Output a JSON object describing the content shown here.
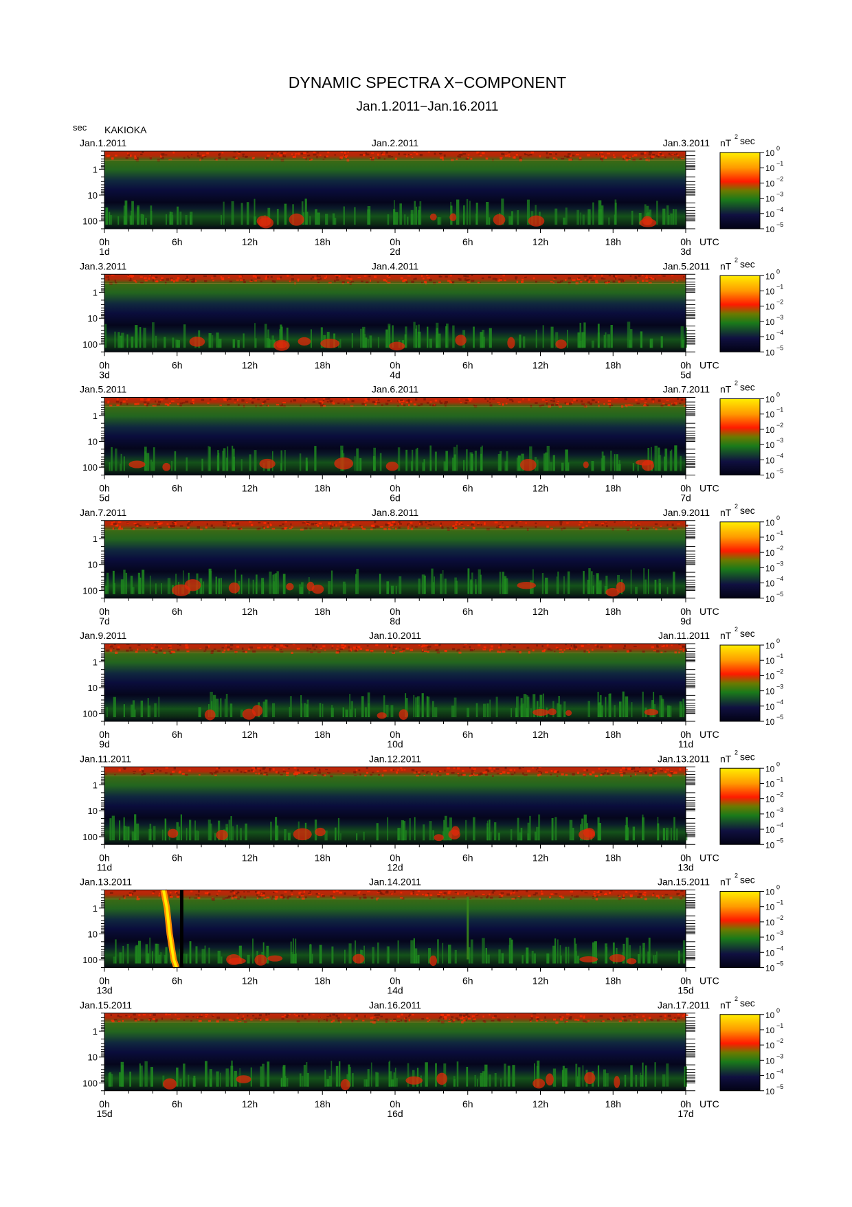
{
  "title": "DYNAMIC SPECTRA X−COMPONENT",
  "subtitle": "Jan.1.2011−Jan.16.2011",
  "station": "KAKIOKA",
  "y_unit": "sec",
  "x_unit": "UTC",
  "colorbar_unit": "nT",
  "colorbar_unit_exponent": "2",
  "colorbar_unit_suffix": "sec",
  "colors": {
    "background": "#030312",
    "low": "#0a0a4a",
    "mid": "#1f7a1f",
    "high": "#e02a00",
    "peak": "#ffea00"
  },
  "chart_data": {
    "type": "heatmap",
    "x_scale": "time",
    "y_scale": "log",
    "ylim": [
      0.2,
      200
    ],
    "y_ticks": [
      "1",
      "10",
      "100"
    ],
    "x_ticks": [
      "0h",
      "6h",
      "12h",
      "18h",
      "0h",
      "6h",
      "12h",
      "18h",
      "0h"
    ],
    "colorbar": {
      "scale": "log",
      "range": [
        "10^-5",
        "10^0"
      ],
      "ticks": [
        {
          "base": "10",
          "exp": "0"
        },
        {
          "base": "10",
          "exp": "−1"
        },
        {
          "base": "10",
          "exp": "−2"
        },
        {
          "base": "10",
          "exp": "−3"
        },
        {
          "base": "10",
          "exp": "−4"
        },
        {
          "base": "10",
          "exp": "−5"
        }
      ],
      "colors": [
        "#ffee00",
        "#ff9a00",
        "#ff1a00",
        "#6c7a00",
        "#1a7a1a",
        "#101040",
        "#020214"
      ]
    },
    "panels": [
      {
        "start_label": "Jan.1.2011",
        "mid_label": "Jan.2.2011",
        "end_label": "Jan.3.2011",
        "day_labels": [
          "1d",
          "2d",
          "3d"
        ]
      },
      {
        "start_label": "Jan.3.2011",
        "mid_label": "Jan.4.2011",
        "end_label": "Jan.5.2011",
        "day_labels": [
          "3d",
          "4d",
          "5d"
        ]
      },
      {
        "start_label": "Jan.5.2011",
        "mid_label": "Jan.6.2011",
        "end_label": "Jan.7.2011",
        "day_labels": [
          "5d",
          "6d",
          "7d"
        ]
      },
      {
        "start_label": "Jan.7.2011",
        "mid_label": "Jan.8.2011",
        "end_label": "Jan.9.2011",
        "day_labels": [
          "7d",
          "8d",
          "9d"
        ]
      },
      {
        "start_label": "Jan.9.2011",
        "mid_label": "Jan.10.2011",
        "end_label": "Jan.11.2011",
        "day_labels": [
          "9d",
          "10d",
          "11d"
        ]
      },
      {
        "start_label": "Jan.11.2011",
        "mid_label": "Jan.12.2011",
        "end_label": "Jan.13.2011",
        "day_labels": [
          "11d",
          "12d",
          "13d"
        ]
      },
      {
        "start_label": "Jan.13.2011",
        "mid_label": "Jan.14.2011",
        "end_label": "Jan.15.2011",
        "day_labels": [
          "13d",
          "14d",
          "15d"
        ]
      },
      {
        "start_label": "Jan.15.2011",
        "mid_label": "Jan.16.2011",
        "end_label": "Jan.17.2011",
        "day_labels": [
          "15d",
          "16d",
          "17d"
        ]
      }
    ],
    "features": [
      {
        "panel": 6,
        "kind": "impulse",
        "t_hours": 5.5,
        "period_sec": 100,
        "level": "10^0"
      },
      {
        "panel": 6,
        "kind": "impulse",
        "t_hours": 30,
        "period_sec": 10,
        "level": "10^-3"
      }
    ]
  }
}
